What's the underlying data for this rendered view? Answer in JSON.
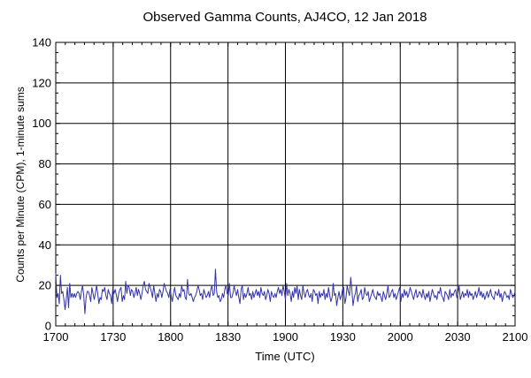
{
  "chart_data": {
    "type": "line",
    "title": "Observed Gamma Counts, AJ4CO, 12 Jan 2018",
    "xlabel": "Time (UTC)",
    "ylabel": "Counts per Minute (CPM), 1-minute sums",
    "x_tick_labels": [
      "1700",
      "1730",
      "1800",
      "1830",
      "1900",
      "1930",
      "2000",
      "2030",
      "2100"
    ],
    "x_tick_minutes": [
      0,
      30,
      60,
      90,
      120,
      150,
      180,
      210,
      240
    ],
    "y_ticks": [
      0,
      20,
      40,
      60,
      80,
      100,
      120,
      140
    ],
    "xlim_minutes": [
      0,
      240
    ],
    "ylim": [
      0,
      140
    ],
    "grid": true,
    "series": [
      {
        "color": "#3333aa",
        "values": [
          26,
          14,
          16,
          11,
          25,
          16,
          17,
          13,
          8,
          13,
          19,
          9,
          21,
          14,
          16,
          14,
          16,
          14,
          16,
          17,
          16,
          13,
          17,
          20,
          15,
          6,
          14,
          17,
          17,
          15,
          12,
          19,
          16,
          13,
          16,
          20,
          16,
          11,
          14,
          13,
          18,
          17,
          19,
          15,
          13,
          18,
          16,
          15,
          11,
          19,
          16,
          18,
          15,
          12,
          16,
          18,
          19,
          12,
          15,
          13,
          22,
          16,
          20,
          19,
          15,
          18,
          17,
          14,
          16,
          19,
          15,
          18,
          16,
          13,
          16,
          20,
          22,
          18,
          17,
          16,
          21,
          19,
          17,
          14,
          20,
          16,
          12,
          16,
          14,
          18,
          17,
          14,
          17,
          21,
          19,
          17,
          16,
          14,
          18,
          15,
          12,
          16,
          19,
          15,
          14,
          13,
          16,
          14,
          20,
          17,
          18,
          14,
          13,
          23,
          16,
          15,
          16,
          14,
          12,
          14,
          15,
          17,
          20,
          18,
          15,
          16,
          13,
          18,
          16,
          14,
          15,
          17,
          14,
          18,
          20,
          15,
          16,
          28,
          17,
          14,
          15,
          12,
          13,
          16,
          14,
          18,
          20,
          16,
          15,
          21,
          14,
          14,
          16,
          20,
          17,
          15,
          18,
          14,
          11,
          18,
          20,
          13,
          16,
          14,
          16,
          19,
          15,
          16,
          13,
          17,
          14,
          16,
          18,
          15,
          17,
          14,
          19,
          16,
          15,
          17,
          13,
          15,
          18,
          16,
          12,
          17,
          15,
          14,
          16,
          14,
          17,
          19,
          16,
          18,
          15,
          20,
          17,
          13,
          21,
          15,
          18,
          16,
          12,
          17,
          14,
          19,
          16,
          20,
          13,
          18,
          15,
          13,
          20,
          16,
          14,
          17,
          18,
          15,
          14,
          16,
          12,
          18,
          17,
          15,
          16,
          11,
          17,
          14,
          16,
          15,
          18,
          13,
          16,
          14,
          19,
          15,
          12,
          14,
          21,
          15,
          16,
          10,
          14,
          17,
          13,
          15,
          18,
          19,
          11,
          14,
          20,
          17,
          15,
          24,
          18,
          10,
          14,
          16,
          20,
          12,
          15,
          16,
          18,
          13,
          14,
          19,
          16,
          15,
          17,
          12,
          14,
          16,
          18,
          15,
          14,
          13,
          17,
          15,
          16,
          14,
          12,
          17,
          15,
          13,
          16,
          20,
          14,
          15,
          17,
          18,
          14,
          16,
          13,
          15,
          17,
          19,
          12,
          16,
          14,
          18,
          15,
          17,
          14,
          16,
          19,
          17,
          15,
          13,
          16,
          18,
          14,
          15,
          17,
          16,
          14,
          18,
          15,
          13,
          16,
          14,
          17,
          12,
          15,
          18,
          16,
          14,
          15,
          13,
          17,
          16,
          19,
          15,
          14,
          12,
          17,
          16,
          15,
          13,
          18,
          14,
          16,
          15,
          17,
          18,
          14,
          16,
          20,
          13,
          15,
          17,
          14,
          16,
          15,
          18,
          14,
          17,
          15,
          16,
          13,
          15,
          17,
          14,
          16,
          19,
          15,
          17,
          14,
          16,
          13,
          15,
          17,
          14,
          16,
          18,
          15,
          14,
          13,
          17,
          16,
          15,
          18,
          14,
          16,
          12,
          15,
          17,
          16,
          14,
          15,
          13,
          18,
          16,
          14,
          15,
          17
        ]
      }
    ]
  }
}
